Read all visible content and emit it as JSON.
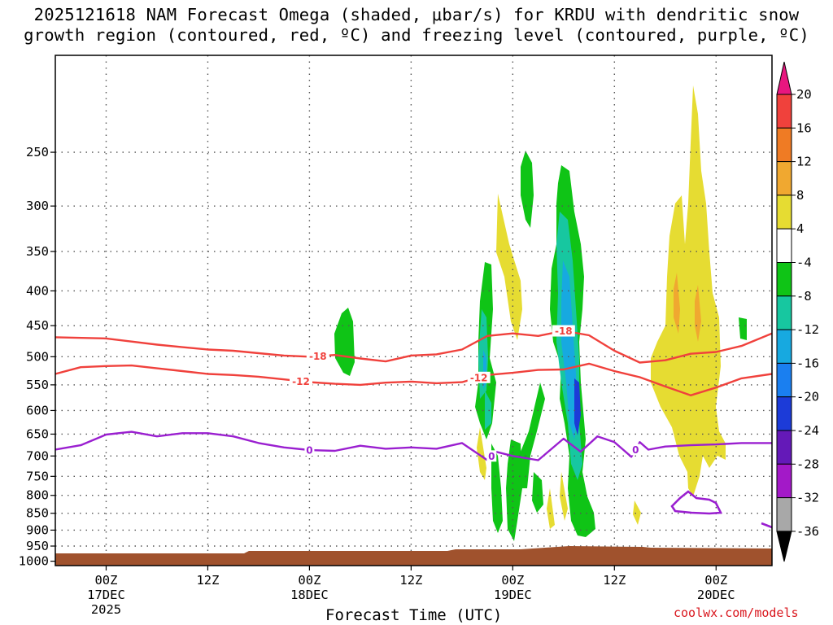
{
  "title": {
    "line1": "2025121618 NAM Forecast Omega (shaded, μbar/s) for KRDU with dendritic snow",
    "line2": "growth region (contoured, red, ºC) and freezing level (contoured, purple, ºC)"
  },
  "credit": "coolwx.com/models",
  "colors": {
    "dgz_contour": "#f0413c",
    "freezing_contour": "#9a1fd0",
    "ground": "#a0522d",
    "grid": "#555555"
  },
  "chart_data": {
    "type": "heatmap",
    "xlabel": "Forecast Time (UTC)",
    "ylabel": "",
    "x_ticks": [
      {
        "label": "00Z",
        "sub1": "17DEC",
        "sub2": "2025",
        "hour": 6
      },
      {
        "label": "12Z",
        "sub1": "",
        "sub2": "",
        "hour": 18
      },
      {
        "label": "00Z",
        "sub1": "18DEC",
        "sub2": "",
        "hour": 30
      },
      {
        "label": "12Z",
        "sub1": "",
        "sub2": "",
        "hour": 42
      },
      {
        "label": "00Z",
        "sub1": "19DEC",
        "sub2": "",
        "hour": 54
      },
      {
        "label": "12Z",
        "sub1": "",
        "sub2": "",
        "hour": 66
      },
      {
        "label": "00Z",
        "sub1": "20DEC",
        "sub2": "",
        "hour": 78
      }
    ],
    "x_range_hours": [
      0,
      84.6
    ],
    "y_ticks": [
      250,
      300,
      350,
      400,
      450,
      500,
      550,
      600,
      650,
      700,
      750,
      800,
      850,
      900,
      950,
      1000
    ],
    "y_range_hPa": [
      180,
      1015
    ],
    "y_scale": "log-pressure",
    "grid": true,
    "colorbar": {
      "labels": [
        "20",
        "16",
        "12",
        "8",
        "4",
        "-4",
        "-8",
        "-12",
        "-16",
        "-20",
        "-24",
        "-28",
        "-32",
        "-36"
      ],
      "colors": [
        "#e8167f",
        "#f0413c",
        "#ef7b24",
        "#f0a830",
        "#e6dc32",
        "#ffffff",
        "#0fc416",
        "#17c7a0",
        "#17a9e0",
        "#1a7ff0",
        "#1c3bd8",
        "#6419b8",
        "#a319c8",
        "#a8a8a8",
        "#000000"
      ]
    },
    "contour_labels": {
      "dgz_upper": "-18",
      "dgz_lower": "-12",
      "freezing": "0"
    },
    "series": [
      {
        "name": "-18",
        "color": "#f0413c",
        "x": [
          0,
          6,
          9,
          12,
          15,
          18,
          21,
          24,
          27,
          30,
          33,
          36,
          39,
          42,
          45,
          48,
          51,
          54,
          57,
          60,
          63,
          66,
          69,
          72,
          75,
          78,
          81,
          84.6
        ],
        "y": [
          468,
          470,
          475,
          480,
          484,
          488,
          490,
          494,
          498,
          500,
          497,
          503,
          508,
          498,
          496,
          488,
          466,
          462,
          466,
          458,
          465,
          490,
          510,
          506,
          495,
          492,
          482,
          462
        ]
      },
      {
        "name": "-12",
        "color": "#f0413c",
        "x": [
          0,
          3,
          6,
          9,
          12,
          15,
          18,
          21,
          24,
          27,
          30,
          33,
          36,
          39,
          42,
          45,
          48,
          51,
          54,
          57,
          60,
          63,
          66,
          69,
          72,
          75,
          78,
          81,
          84.6
        ],
        "y": [
          530,
          518,
          516,
          515,
          520,
          525,
          530,
          532,
          535,
          540,
          545,
          548,
          550,
          546,
          544,
          547,
          545,
          532,
          528,
          523,
          522,
          512,
          525,
          536,
          553,
          570,
          555,
          538,
          530
        ]
      },
      {
        "name": "0",
        "color": "#9a1fd0",
        "x": [
          0,
          3,
          6,
          9,
          12,
          15,
          18,
          21,
          24,
          27,
          30,
          33,
          36,
          39,
          42,
          45,
          48,
          51,
          52,
          54,
          57,
          60,
          62,
          64,
          66,
          68,
          69,
          70,
          72,
          75,
          78,
          81,
          84.6
        ],
        "y": [
          685,
          675,
          651,
          645,
          655,
          648,
          648,
          655,
          670,
          680,
          686,
          688,
          676,
          683,
          680,
          683,
          670,
          710,
          690,
          700,
          710,
          660,
          690,
          655,
          668,
          702,
          668,
          685,
          678,
          675,
          673,
          670,
          670
        ]
      }
    ]
  }
}
